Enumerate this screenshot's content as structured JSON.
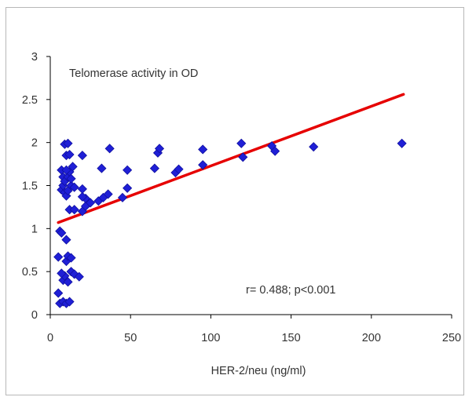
{
  "chart_data": {
    "type": "scatter",
    "title": "",
    "inset_label": "Telomerase activity in OD",
    "xlabel": "HER-2/neu (ng/ml)",
    "ylabel": "",
    "xlim": [
      0,
      250
    ],
    "ylim": [
      0,
      3
    ],
    "x_ticks": [
      0,
      50,
      100,
      150,
      200,
      250
    ],
    "y_ticks": [
      0,
      0.5,
      1,
      1.5,
      2,
      2.5,
      3
    ],
    "grid": false,
    "legend": "none",
    "annotation": "r= 0.488; p<0.001",
    "marker": "diamond",
    "point_color": "#1f1fd6",
    "trend_color": "#e60000",
    "trendline": {
      "x": [
        5,
        220
      ],
      "y": [
        1.07,
        2.56
      ]
    },
    "points": [
      [
        5,
        0.25
      ],
      [
        6,
        0.13
      ],
      [
        8,
        0.15
      ],
      [
        10,
        0.13
      ],
      [
        12,
        0.15
      ],
      [
        8,
        0.4
      ],
      [
        9,
        0.45
      ],
      [
        7,
        0.48
      ],
      [
        11,
        0.38
      ],
      [
        13,
        0.5
      ],
      [
        15,
        0.47
      ],
      [
        18,
        0.44
      ],
      [
        5,
        0.67
      ],
      [
        10,
        0.62
      ],
      [
        11,
        0.68
      ],
      [
        13,
        0.66
      ],
      [
        10,
        0.87
      ],
      [
        6,
        0.97
      ],
      [
        7,
        0.95
      ],
      [
        12,
        1.22
      ],
      [
        15,
        1.22
      ],
      [
        20,
        1.2
      ],
      [
        22,
        1.26
      ],
      [
        25,
        1.3
      ],
      [
        22,
        1.35
      ],
      [
        20,
        1.37
      ],
      [
        30,
        1.32
      ],
      [
        33,
        1.36
      ],
      [
        36,
        1.4
      ],
      [
        45,
        1.36
      ],
      [
        48,
        1.47
      ],
      [
        7,
        1.45
      ],
      [
        8,
        1.5
      ],
      [
        9,
        1.42
      ],
      [
        10,
        1.38
      ],
      [
        11,
        1.44
      ],
      [
        13,
        1.5
      ],
      [
        15,
        1.48
      ],
      [
        20,
        1.46
      ],
      [
        8,
        1.6
      ],
      [
        9,
        1.55
      ],
      [
        11,
        1.6
      ],
      [
        12,
        1.66
      ],
      [
        14,
        1.72
      ],
      [
        7,
        1.68
      ],
      [
        10,
        1.68
      ],
      [
        13,
        1.58
      ],
      [
        10,
        1.85
      ],
      [
        12,
        1.86
      ],
      [
        9,
        1.98
      ],
      [
        11,
        1.99
      ],
      [
        20,
        1.85
      ],
      [
        32,
        1.7
      ],
      [
        48,
        1.68
      ],
      [
        65,
        1.7
      ],
      [
        78,
        1.65
      ],
      [
        80,
        1.69
      ],
      [
        95,
        1.74
      ],
      [
        37,
        1.93
      ],
      [
        67,
        1.88
      ],
      [
        68,
        1.93
      ],
      [
        95,
        1.92
      ],
      [
        119,
        1.99
      ],
      [
        120,
        1.83
      ],
      [
        138,
        1.96
      ],
      [
        140,
        1.9
      ],
      [
        164,
        1.95
      ],
      [
        219,
        1.99
      ]
    ]
  }
}
